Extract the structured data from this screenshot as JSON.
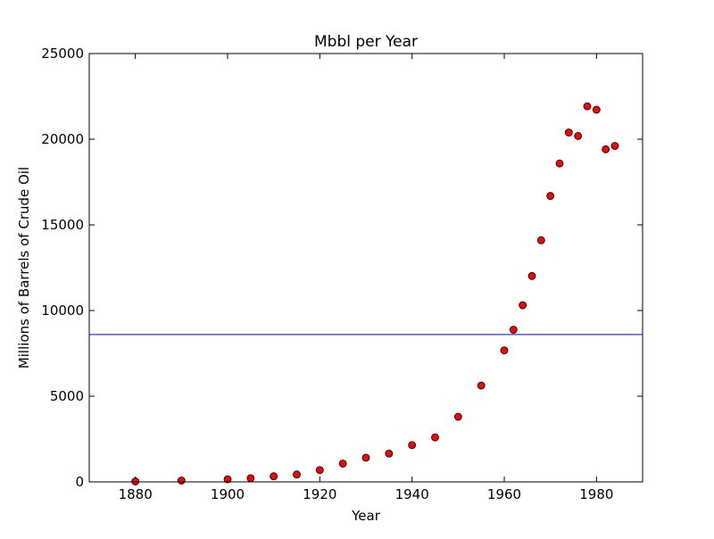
{
  "chart_data": {
    "type": "scatter",
    "title": "Mbbl per Year",
    "xlabel": "Year",
    "ylabel": "Millions of Barrels of Crude Oil",
    "xlim": [
      1870,
      1990
    ],
    "ylim": [
      0,
      25000
    ],
    "x_ticks": [
      1880,
      1900,
      1920,
      1940,
      1960,
      1980
    ],
    "y_ticks": [
      0,
      5000,
      10000,
      15000,
      20000,
      25000
    ],
    "grid": false,
    "series": [
      {
        "marker": "circle",
        "color": "#ff0000",
        "edge_color": "#000000",
        "x": [
          1880,
          1890,
          1900,
          1905,
          1910,
          1915,
          1920,
          1925,
          1930,
          1935,
          1940,
          1945,
          1950,
          1955,
          1960,
          1962,
          1964,
          1966,
          1968,
          1970,
          1972,
          1974,
          1976,
          1978,
          1980,
          1982,
          1984
        ],
        "y": [
          30,
          77,
          149,
          215,
          328,
          432,
          689,
          1069,
          1412,
          1655,
          2150,
          2595,
          3803,
          5626,
          7674,
          8882,
          10310,
          12016,
          14104,
          16690,
          18584,
          20389,
          20188,
          21922,
          21722,
          19411,
          19610
        ]
      }
    ],
    "hlines": [
      {
        "y": 8600,
        "color": "#0000ff"
      }
    ]
  }
}
